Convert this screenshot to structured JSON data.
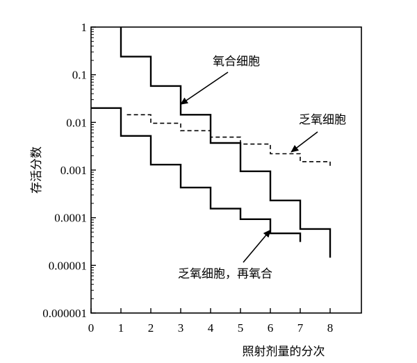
{
  "chart_data": {
    "type": "line",
    "title": "",
    "xlabel": "照射剂量的分次",
    "ylabel": "存活分数",
    "xlim": [
      0,
      10
    ],
    "ylim": [
      1e-06,
      1
    ],
    "y_scale": "log",
    "x_ticks": [
      0,
      1,
      2,
      3,
      4,
      5,
      6,
      7,
      8
    ],
    "x_tick_labels": [
      "0",
      "1",
      "2",
      "3",
      "4",
      "5",
      "6",
      "7",
      "8"
    ],
    "y_ticks": [
      1,
      0.1,
      0.01,
      0.001,
      0.0001,
      1e-05,
      1e-06
    ],
    "y_tick_labels": [
      "1",
      "0.1",
      "0.01",
      "0.001",
      "0.0001",
      "0.00001",
      "0.000001"
    ],
    "grid": false,
    "legend": "none",
    "series": [
      {
        "name": "氧合细胞",
        "style": "solid",
        "x": [
          1,
          1,
          2,
          2,
          3,
          3,
          4,
          4,
          5,
          5,
          6,
          6,
          7,
          7,
          8,
          8
        ],
        "y": [
          1,
          0.24,
          0.24,
          0.058,
          0.058,
          0.0145,
          0.0145,
          0.0037,
          0.0037,
          0.00094,
          0.00094,
          0.00023,
          0.00023,
          5.8e-05,
          5.8e-05,
          1.45e-05
        ]
      },
      {
        "name": "乏氧细胞",
        "style": "dashed",
        "x": [
          1.2,
          2,
          2,
          3,
          3,
          4,
          4,
          5,
          5,
          6,
          6,
          7,
          7,
          8,
          8
        ],
        "y": [
          0.0145,
          0.0145,
          0.0096,
          0.0096,
          0.0067,
          0.0067,
          0.0049,
          0.0049,
          0.0035,
          0.0035,
          0.0022,
          0.0022,
          0.0015,
          0.0015,
          0.0012
        ]
      },
      {
        "name": "乏氧细胞，再氧合",
        "style": "solid",
        "x": [
          0,
          1,
          1,
          2,
          2,
          3,
          3,
          4,
          4,
          5,
          5,
          6,
          6,
          7,
          7
        ],
        "y": [
          0.02,
          0.02,
          0.0052,
          0.0052,
          0.0013,
          0.0013,
          0.00043,
          0.00043,
          0.000155,
          0.000155,
          9.3e-05,
          9.3e-05,
          4.7e-05,
          4.7e-05,
          3.1e-05
        ]
      }
    ],
    "annotations": [
      {
        "text": "氧合细胞",
        "arrow_to": [
          3.0,
          0.024
        ]
      },
      {
        "text": "乏氧细胞",
        "arrow_to": [
          6.7,
          0.0024
        ]
      },
      {
        "text": "乏氧细胞，再氧合",
        "arrow_to": [
          6.0,
          5.5e-05
        ]
      }
    ],
    "colors": {
      "line": "#000000",
      "axis": "#000000",
      "background": "#ffffff"
    }
  }
}
